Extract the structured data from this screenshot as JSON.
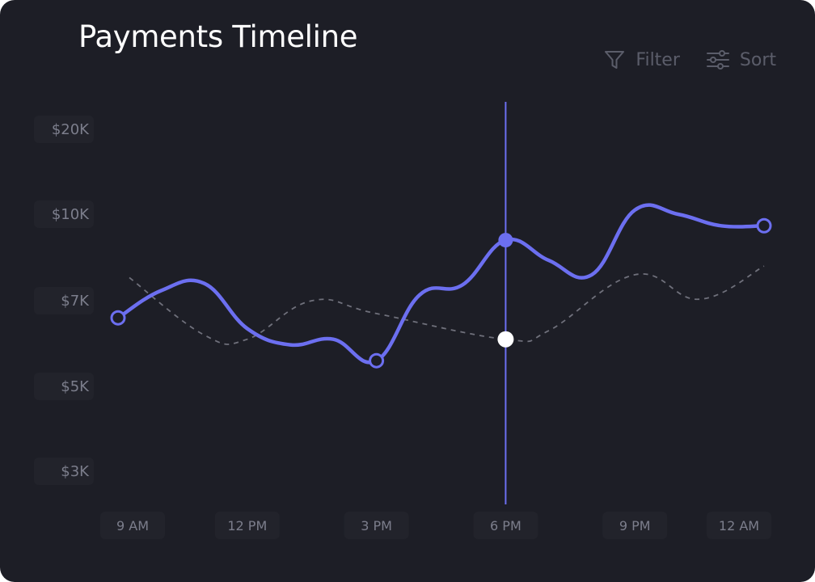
{
  "header": {
    "title": "Payments Timeline",
    "filter_label": "Filter",
    "sort_label": "Sort"
  },
  "colors": {
    "background": "#1d1e26",
    "primary_series": "#6c6ff0",
    "secondary_series": "#6f707b",
    "cursor": "#6c6ff0",
    "text_muted": "#7c7e8c"
  },
  "chart_data": {
    "type": "line",
    "y_ticks": [
      "$20K",
      "$10K",
      "$7K",
      "$5K",
      "$3K"
    ],
    "x_ticks": [
      "9 AM",
      "12 PM",
      "3 PM",
      "6 PM",
      "9 PM",
      "12 AM"
    ],
    "scale_note": "nonlinear y-axis; values map to tick labels",
    "series": [
      {
        "values": [
          {
            "x": "9 AM",
            "y": 6.6
          },
          {
            "x": "10 AM",
            "y": 7.35
          },
          {
            "x": "11 AM",
            "y": 7.6
          },
          {
            "x": "12 PM",
            "y": 6.35
          },
          {
            "x": "1 PM",
            "y": 5.97
          },
          {
            "x": "2 PM",
            "y": 6.1
          },
          {
            "x": "3 PM",
            "y": 5.6
          },
          {
            "x": "4 PM",
            "y": 7.2
          },
          {
            "x": "5 PM",
            "y": 7.55
          },
          {
            "x": "6 PM",
            "y": 9.1
          },
          {
            "x": "7 PM",
            "y": 8.4
          },
          {
            "x": "8 PM",
            "y": 7.9
          },
          {
            "x": "9 PM",
            "y": 10.5
          },
          {
            "x": "10 PM",
            "y": 10.0
          },
          {
            "x": "11 PM",
            "y": 9.6
          },
          {
            "x": "12 AM",
            "y": 9.6
          }
        ]
      },
      {
        "style": "dashed",
        "values": [
          {
            "x": "9 AM",
            "y": 7.8
          },
          {
            "x": "11 AM",
            "y": 6.2
          },
          {
            "x": "12 PM",
            "y": 6.1
          },
          {
            "x": "1:30 PM",
            "y": 7.0
          },
          {
            "x": "3 PM",
            "y": 6.7
          },
          {
            "x": "6 PM",
            "y": 6.1
          },
          {
            "x": "7 PM",
            "y": 6.3
          },
          {
            "x": "9 PM",
            "y": 7.9
          },
          {
            "x": "10:30 PM",
            "y": 7.05
          },
          {
            "x": "12 AM",
            "y": 8.2
          }
        ]
      }
    ],
    "highlight": {
      "x": "6 PM",
      "primary_y": 9.1,
      "secondary_y": 6.1
    }
  }
}
